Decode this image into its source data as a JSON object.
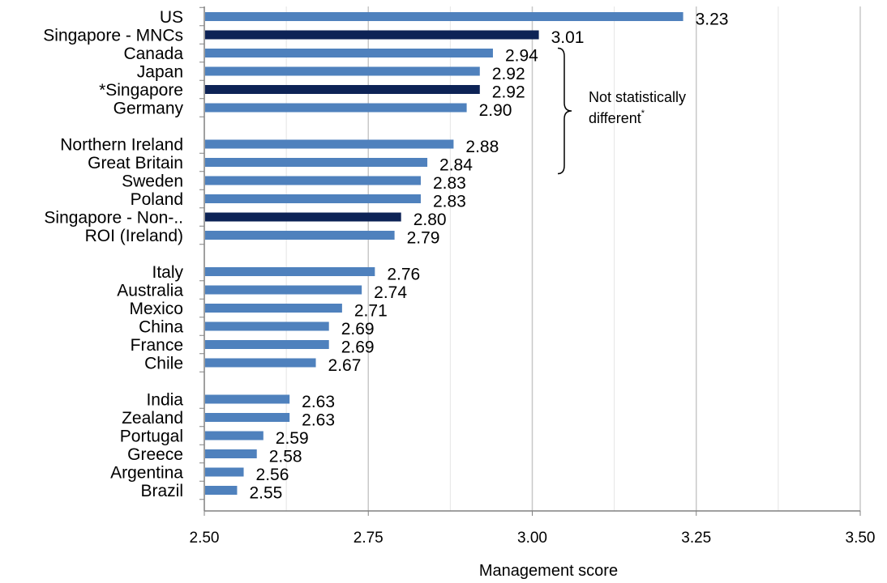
{
  "chart_data": {
    "type": "bar",
    "orientation": "horizontal",
    "xlabel": "Management score",
    "xlim": [
      2.5,
      3.5
    ],
    "xticks": [
      "2.50",
      "2.75",
      "3.00",
      "3.25",
      "3.50"
    ],
    "grid": true,
    "colors": {
      "default": "#4f81bd",
      "highlight": "#0d2356"
    },
    "categories": [
      "US",
      "Singapore - MNCs",
      "Canada",
      "Japan",
      "*Singapore",
      "Germany",
      "Northern Ireland",
      "Great Britain",
      "Sweden",
      "Poland",
      "Singapore - Non-..",
      "ROI (Ireland)",
      "Italy",
      "Australia",
      "Mexico",
      "China",
      "France",
      "Chile",
      "India",
      "Zealand",
      "Portugal",
      "Greece",
      "Argentina",
      "Brazil"
    ],
    "values": [
      3.23,
      3.01,
      2.94,
      2.92,
      2.92,
      2.9,
      2.88,
      2.84,
      2.83,
      2.83,
      2.8,
      2.79,
      2.76,
      2.74,
      2.71,
      2.69,
      2.69,
      2.67,
      2.63,
      2.63,
      2.59,
      2.58,
      2.56,
      2.55
    ],
    "value_labels": [
      "3.23",
      "3.01",
      "2.94",
      "2.92",
      "2.92",
      "2.90",
      "2.88",
      "2.84",
      "2.83",
      "2.83",
      "2.80",
      "2.79",
      "2.76",
      "2.74",
      "2.71",
      "2.69",
      "2.69",
      "2.67",
      "2.63",
      "2.63",
      "2.59",
      "2.58",
      "2.56",
      "2.55"
    ],
    "highlighted": [
      "Singapore - MNCs",
      "*Singapore",
      "Singapore - Non-.."
    ],
    "groups": [
      6,
      6,
      6,
      6
    ],
    "annotation": {
      "text_line1": "Not statistically",
      "text_line2": "different",
      "superscript": "*",
      "from_category": "Canada",
      "to_category": "Great Britain"
    }
  }
}
